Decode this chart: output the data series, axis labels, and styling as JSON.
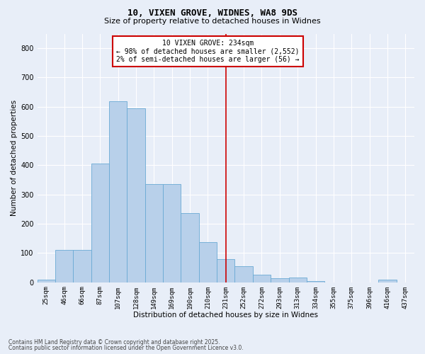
{
  "title1": "10, VIXEN GROVE, WIDNES, WA8 9DS",
  "title2": "Size of property relative to detached houses in Widnes",
  "xlabel": "Distribution of detached houses by size in Widnes",
  "ylabel": "Number of detached properties",
  "bar_color": "#b8d0ea",
  "bar_edge_color": "#6aaad4",
  "bg_color": "#e8eef8",
  "grid_color": "#ffffff",
  "categories": [
    "25sqm",
    "46sqm",
    "66sqm",
    "87sqm",
    "107sqm",
    "128sqm",
    "149sqm",
    "169sqm",
    "190sqm",
    "210sqm",
    "231sqm",
    "252sqm",
    "272sqm",
    "293sqm",
    "313sqm",
    "334sqm",
    "355sqm",
    "375sqm",
    "396sqm",
    "416sqm",
    "437sqm"
  ],
  "values": [
    8,
    110,
    110,
    405,
    620,
    595,
    335,
    335,
    237,
    137,
    80,
    55,
    27,
    15,
    17,
    3,
    0,
    0,
    0,
    10,
    0
  ],
  "vline_x": 10,
  "vline_color": "#cc0000",
  "annotation_text": "10 VIXEN GROVE: 234sqm\n← 98% of detached houses are smaller (2,552)\n2% of semi-detached houses are larger (56) →",
  "annotation_box_color": "#ffffff",
  "annotation_box_edge": "#cc0000",
  "ylim": [
    0,
    850
  ],
  "yticks": [
    0,
    100,
    200,
    300,
    400,
    500,
    600,
    700,
    800
  ],
  "footer1": "Contains HM Land Registry data © Crown copyright and database right 2025.",
  "footer2": "Contains public sector information licensed under the Open Government Licence v3.0."
}
